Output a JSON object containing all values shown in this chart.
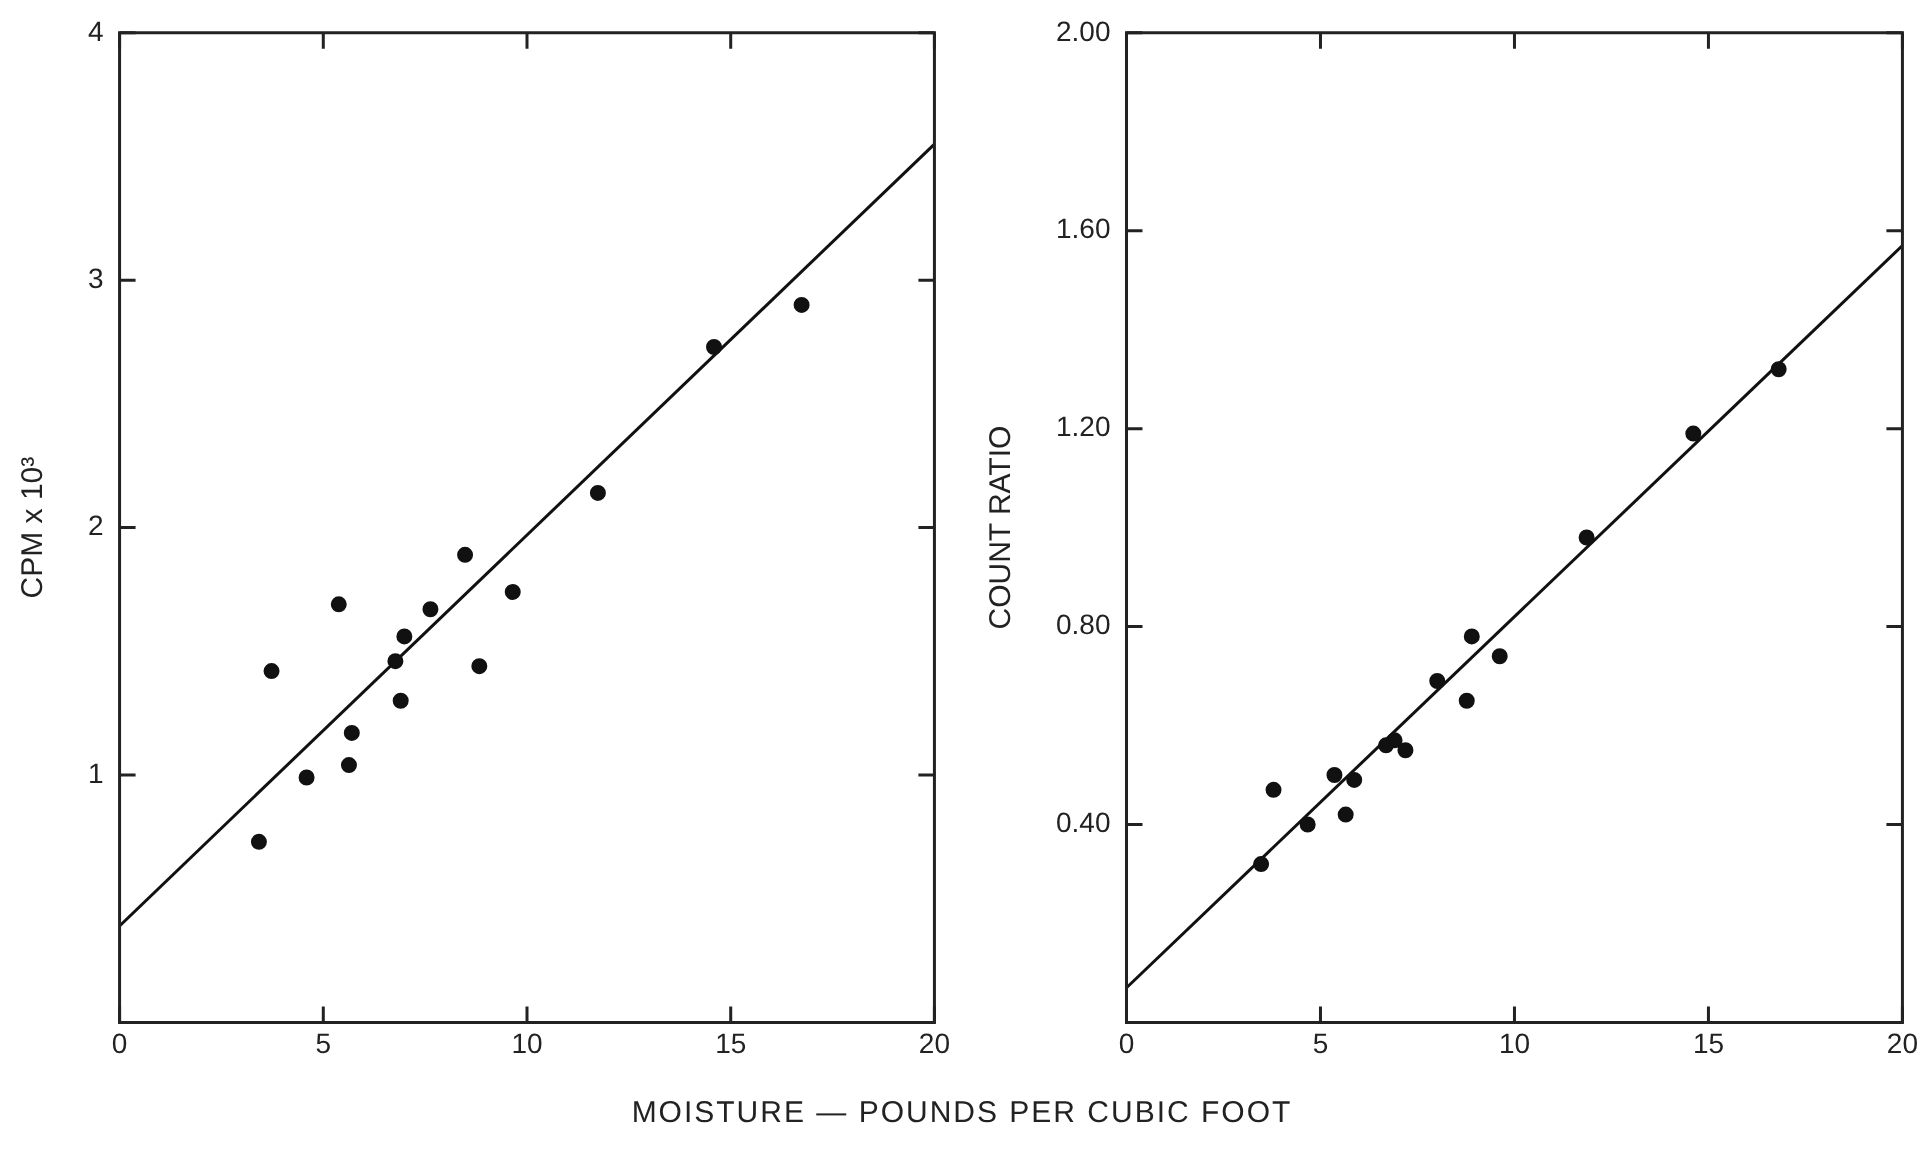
{
  "chart_data": [
    {
      "type": "scatter",
      "xlabel": "MOISTURE — POUNDS PER CUBIC FOOT",
      "ylabel": "CPM x 10³",
      "xlim": [
        0,
        20
      ],
      "xticks": [
        0,
        5,
        10,
        15,
        20
      ],
      "ylim": [
        0,
        4
      ],
      "yticks": [
        1,
        2,
        3,
        4
      ],
      "grid": false,
      "legend": false,
      "series": [
        {
          "marker": "circle",
          "color": "#111111",
          "x": [
            3.42,
            3.73,
            4.59,
            5.38,
            5.63,
            5.7,
            6.77,
            6.9,
            6.99,
            7.63,
            8.48,
            8.83,
            9.65,
            11.74,
            14.59,
            16.74
          ],
          "values": [
            0.73,
            1.42,
            0.99,
            1.69,
            1.04,
            1.17,
            1.46,
            1.3,
            1.56,
            1.67,
            1.89,
            1.44,
            1.74,
            2.14,
            2.73,
            2.9
          ]
        },
        {
          "type": "line",
          "marker": "none",
          "color": "#111111",
          "x": [
            0,
            20
          ],
          "values": [
            0.39,
            3.55
          ]
        }
      ]
    },
    {
      "type": "scatter",
      "ylabel": "COUNT RATIO",
      "xlim": [
        0,
        20
      ],
      "xticks": [
        0,
        5,
        10,
        15,
        20
      ],
      "ylim": [
        0,
        2
      ],
      "yticks": [
        {
          "value": 0.4,
          "label": "0.40"
        },
        {
          "value": 0.8,
          "label": "0.80"
        },
        {
          "value": 1.2,
          "label": "1.20"
        },
        {
          "value": 1.6,
          "label": "1.60"
        },
        {
          "value": 2,
          "label": "2.00"
        }
      ],
      "grid": false,
      "legend": false,
      "series": [
        {
          "marker": "circle",
          "color": "#111111",
          "x": [
            3.47,
            3.79,
            4.67,
            5.36,
            5.65,
            5.87,
            6.69,
            6.91,
            7.19,
            8.01,
            8.77,
            8.9,
            9.62,
            11.86,
            14.61,
            16.81
          ],
          "values": [
            0.32,
            0.47,
            0.4,
            0.5,
            0.42,
            0.49,
            0.56,
            0.57,
            0.55,
            0.69,
            0.65,
            0.78,
            0.74,
            0.98,
            1.19,
            1.32
          ]
        },
        {
          "type": "line",
          "marker": "none",
          "color": "#111111",
          "x": [
            0,
            20
          ],
          "values": [
            0.07,
            1.57
          ]
        }
      ]
    }
  ]
}
